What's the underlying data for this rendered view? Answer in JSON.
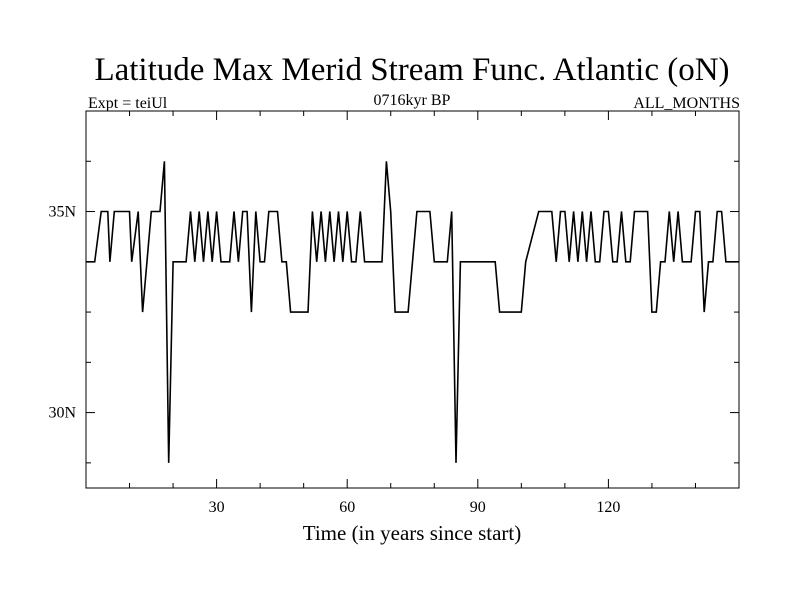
{
  "chart_data": {
    "type": "line",
    "title": "Latitude Max Merid Stream Func. Atlantic (oN)",
    "subtitle_left": "Expt = teiUl",
    "subtitle_center": "0716kyr BP",
    "subtitle_right": "ALL_MONTHS",
    "xlabel": "Time (in years since start)",
    "ylabel": "",
    "xlim": [
      0,
      150
    ],
    "ylim": [
      28.125,
      37.5
    ],
    "x_ticks": [
      30,
      60,
      90,
      120
    ],
    "x_tick_labels": [
      "30",
      "60",
      "90",
      "120"
    ],
    "y_ticks": [
      30,
      35
    ],
    "y_tick_labels": [
      "30N",
      "35N"
    ],
    "grid": false,
    "series": [
      {
        "values": [
          [
            0,
            33.75
          ],
          [
            2,
            33.75
          ],
          [
            3.5,
            35
          ],
          [
            5,
            35
          ],
          [
            5.5,
            33.75
          ],
          [
            6.5,
            35
          ],
          [
            10,
            35
          ],
          [
            10.5,
            33.75
          ],
          [
            12,
            35
          ],
          [
            13,
            32.5
          ],
          [
            15,
            35
          ],
          [
            17,
            35
          ],
          [
            18,
            36.25
          ],
          [
            19,
            28.75
          ],
          [
            20,
            33.75
          ],
          [
            23,
            33.75
          ],
          [
            24,
            35
          ],
          [
            25,
            33.75
          ],
          [
            26,
            35
          ],
          [
            27,
            33.75
          ],
          [
            28,
            35
          ],
          [
            29,
            33.75
          ],
          [
            30,
            35
          ],
          [
            31,
            33.75
          ],
          [
            33,
            33.75
          ],
          [
            34,
            35
          ],
          [
            35,
            33.75
          ],
          [
            36,
            35
          ],
          [
            37,
            35
          ],
          [
            38,
            32.5
          ],
          [
            39,
            35
          ],
          [
            40,
            33.75
          ],
          [
            41,
            33.75
          ],
          [
            42,
            35
          ],
          [
            44,
            35
          ],
          [
            45,
            33.75
          ],
          [
            46,
            33.75
          ],
          [
            47,
            32.5
          ],
          [
            51,
            32.5
          ],
          [
            52,
            35
          ],
          [
            53,
            33.75
          ],
          [
            54,
            35
          ],
          [
            55,
            33.75
          ],
          [
            56,
            35
          ],
          [
            57,
            33.75
          ],
          [
            58,
            35
          ],
          [
            59,
            33.75
          ],
          [
            60,
            35
          ],
          [
            61,
            33.75
          ],
          [
            62,
            33.75
          ],
          [
            63,
            35
          ],
          [
            64,
            33.75
          ],
          [
            68,
            33.75
          ],
          [
            69,
            36.25
          ],
          [
            70,
            35
          ],
          [
            71,
            32.5
          ],
          [
            74,
            32.5
          ],
          [
            75,
            33.75
          ],
          [
            76,
            35
          ],
          [
            79,
            35
          ],
          [
            80,
            33.75
          ],
          [
            83,
            33.75
          ],
          [
            84,
            35
          ],
          [
            85,
            28.75
          ],
          [
            86,
            33.75
          ],
          [
            94,
            33.75
          ],
          [
            95,
            32.5
          ],
          [
            100,
            32.5
          ],
          [
            101,
            33.75
          ],
          [
            104,
            35
          ],
          [
            107,
            35
          ],
          [
            108,
            33.75
          ],
          [
            109,
            35
          ],
          [
            110,
            35
          ],
          [
            111,
            33.75
          ],
          [
            112,
            35
          ],
          [
            113,
            33.75
          ],
          [
            114,
            35
          ],
          [
            115,
            33.75
          ],
          [
            116,
            35
          ],
          [
            117,
            33.75
          ],
          [
            118,
            33.75
          ],
          [
            119,
            35
          ],
          [
            120,
            35
          ],
          [
            121,
            33.75
          ],
          [
            122,
            33.75
          ],
          [
            123,
            35
          ],
          [
            124,
            33.75
          ],
          [
            125,
            33.75
          ],
          [
            126,
            35
          ],
          [
            129,
            35
          ],
          [
            130,
            32.5
          ],
          [
            131,
            32.5
          ],
          [
            132,
            33.75
          ],
          [
            133,
            33.75
          ],
          [
            134,
            35
          ],
          [
            135,
            33.75
          ],
          [
            136,
            35
          ],
          [
            137,
            33.75
          ],
          [
            139,
            33.75
          ],
          [
            140,
            35
          ],
          [
            141,
            35
          ],
          [
            142,
            32.5
          ],
          [
            143,
            33.75
          ],
          [
            144,
            33.75
          ],
          [
            145,
            35
          ],
          [
            146,
            35
          ],
          [
            147,
            33.75
          ],
          [
            150,
            33.75
          ]
        ]
      }
    ]
  }
}
